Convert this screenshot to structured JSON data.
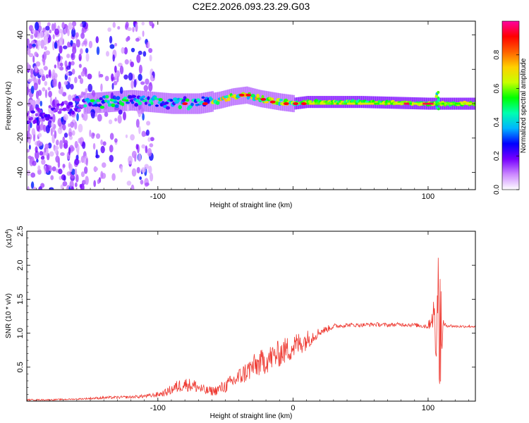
{
  "title": "C2E2.2026.093.23.29.G03",
  "chart_data": [
    {
      "type": "heatmap",
      "xlabel": "Height of straight line (km)",
      "ylabel": "Frequency (Hz)",
      "xlim": [
        -197,
        135
      ],
      "ylim": [
        -50,
        48
      ],
      "xticks": [
        -100,
        0,
        100
      ],
      "xtick_labels": [
        "-100",
        "",
        "100"
      ],
      "yticks": [
        -40,
        -20,
        0,
        20,
        40
      ],
      "ytick_labels": [
        "-40",
        "-20",
        "0",
        "20",
        "40"
      ],
      "colorbar": {
        "label": "Normalized spectral amplitude",
        "range": [
          0,
          1
        ],
        "ticks": [
          0.0,
          0.2,
          0.4,
          0.6,
          0.8
        ],
        "tick_labels": [
          "0.0",
          "0.2",
          "0.4",
          "0.6",
          "0.8"
        ],
        "colors": [
          "#ffffff",
          "#cc88ff",
          "#7700ff",
          "#0000ff",
          "#00b4ff",
          "#00ffb0",
          "#00ff00",
          "#c8ff00",
          "#ffd000",
          "#ff6000",
          "#ff0000",
          "#ff00a0"
        ]
      },
      "ridge": [
        {
          "x": -197,
          "y": -8
        },
        {
          "x": -155,
          "y": 0
        },
        {
          "x": -120,
          "y": 2
        },
        {
          "x": -90,
          "y": 0
        },
        {
          "x": -70,
          "y": 0
        },
        {
          "x": -55,
          "y": 2
        },
        {
          "x": -45,
          "y": 4
        },
        {
          "x": -35,
          "y": 5
        },
        {
          "x": -25,
          "y": 3
        },
        {
          "x": -10,
          "y": 1
        },
        {
          "x": 0,
          "y": 0
        },
        {
          "x": 10,
          "y": 1
        },
        {
          "x": 50,
          "y": 1
        },
        {
          "x": 100,
          "y": 0
        },
        {
          "x": 135,
          "y": 0
        }
      ]
    },
    {
      "type": "line",
      "xlabel": "Height of straight line (km)",
      "ylabel": "SNR (10 * v/v)",
      "y_multiplier_label": "(x10",
      "y_multiplier_exp": "4",
      "y_multiplier_close": ")",
      "xlim": [
        -197,
        135
      ],
      "ylim": [
        0,
        2.5
      ],
      "xticks": [
        -100,
        0,
        100
      ],
      "xtick_labels": [
        "-100",
        "0",
        "100"
      ],
      "yticks": [
        0.5,
        1.0,
        1.5,
        2.0,
        2.5
      ],
      "ytick_labels": [
        "0.5",
        "1.0",
        "1.5",
        "2.0",
        "2.5"
      ],
      "color": "#ee3a32",
      "series": [
        {
          "name": "SNR",
          "x": [
            -197,
            -180,
            -160,
            -140,
            -120,
            -105,
            -95,
            -85,
            -80,
            -72,
            -65,
            -58,
            -50,
            -40,
            -30,
            -20,
            -10,
            0,
            10,
            20,
            30,
            40,
            50,
            60,
            70,
            80,
            90,
            100,
            104,
            106,
            108,
            110,
            112,
            120,
            135
          ],
          "y": [
            0.02,
            0.02,
            0.03,
            0.05,
            0.06,
            0.08,
            0.12,
            0.22,
            0.25,
            0.22,
            0.15,
            0.15,
            0.22,
            0.35,
            0.5,
            0.6,
            0.7,
            0.8,
            0.9,
            1.02,
            1.1,
            1.12,
            1.12,
            1.13,
            1.12,
            1.13,
            1.12,
            1.1,
            1.3,
            0.8,
            1.9,
            1.0,
            1.12,
            1.1,
            1.1
          ],
          "noise": [
            0.01,
            0.01,
            0.01,
            0.02,
            0.02,
            0.03,
            0.05,
            0.1,
            0.1,
            0.1,
            0.07,
            0.07,
            0.1,
            0.14,
            0.18,
            0.2,
            0.2,
            0.2,
            0.15,
            0.06,
            0.04,
            0.03,
            0.03,
            0.03,
            0.03,
            0.03,
            0.03,
            0.04,
            0.25,
            0.4,
            0.6,
            0.4,
            0.03,
            0.02,
            0.02
          ]
        }
      ]
    }
  ]
}
